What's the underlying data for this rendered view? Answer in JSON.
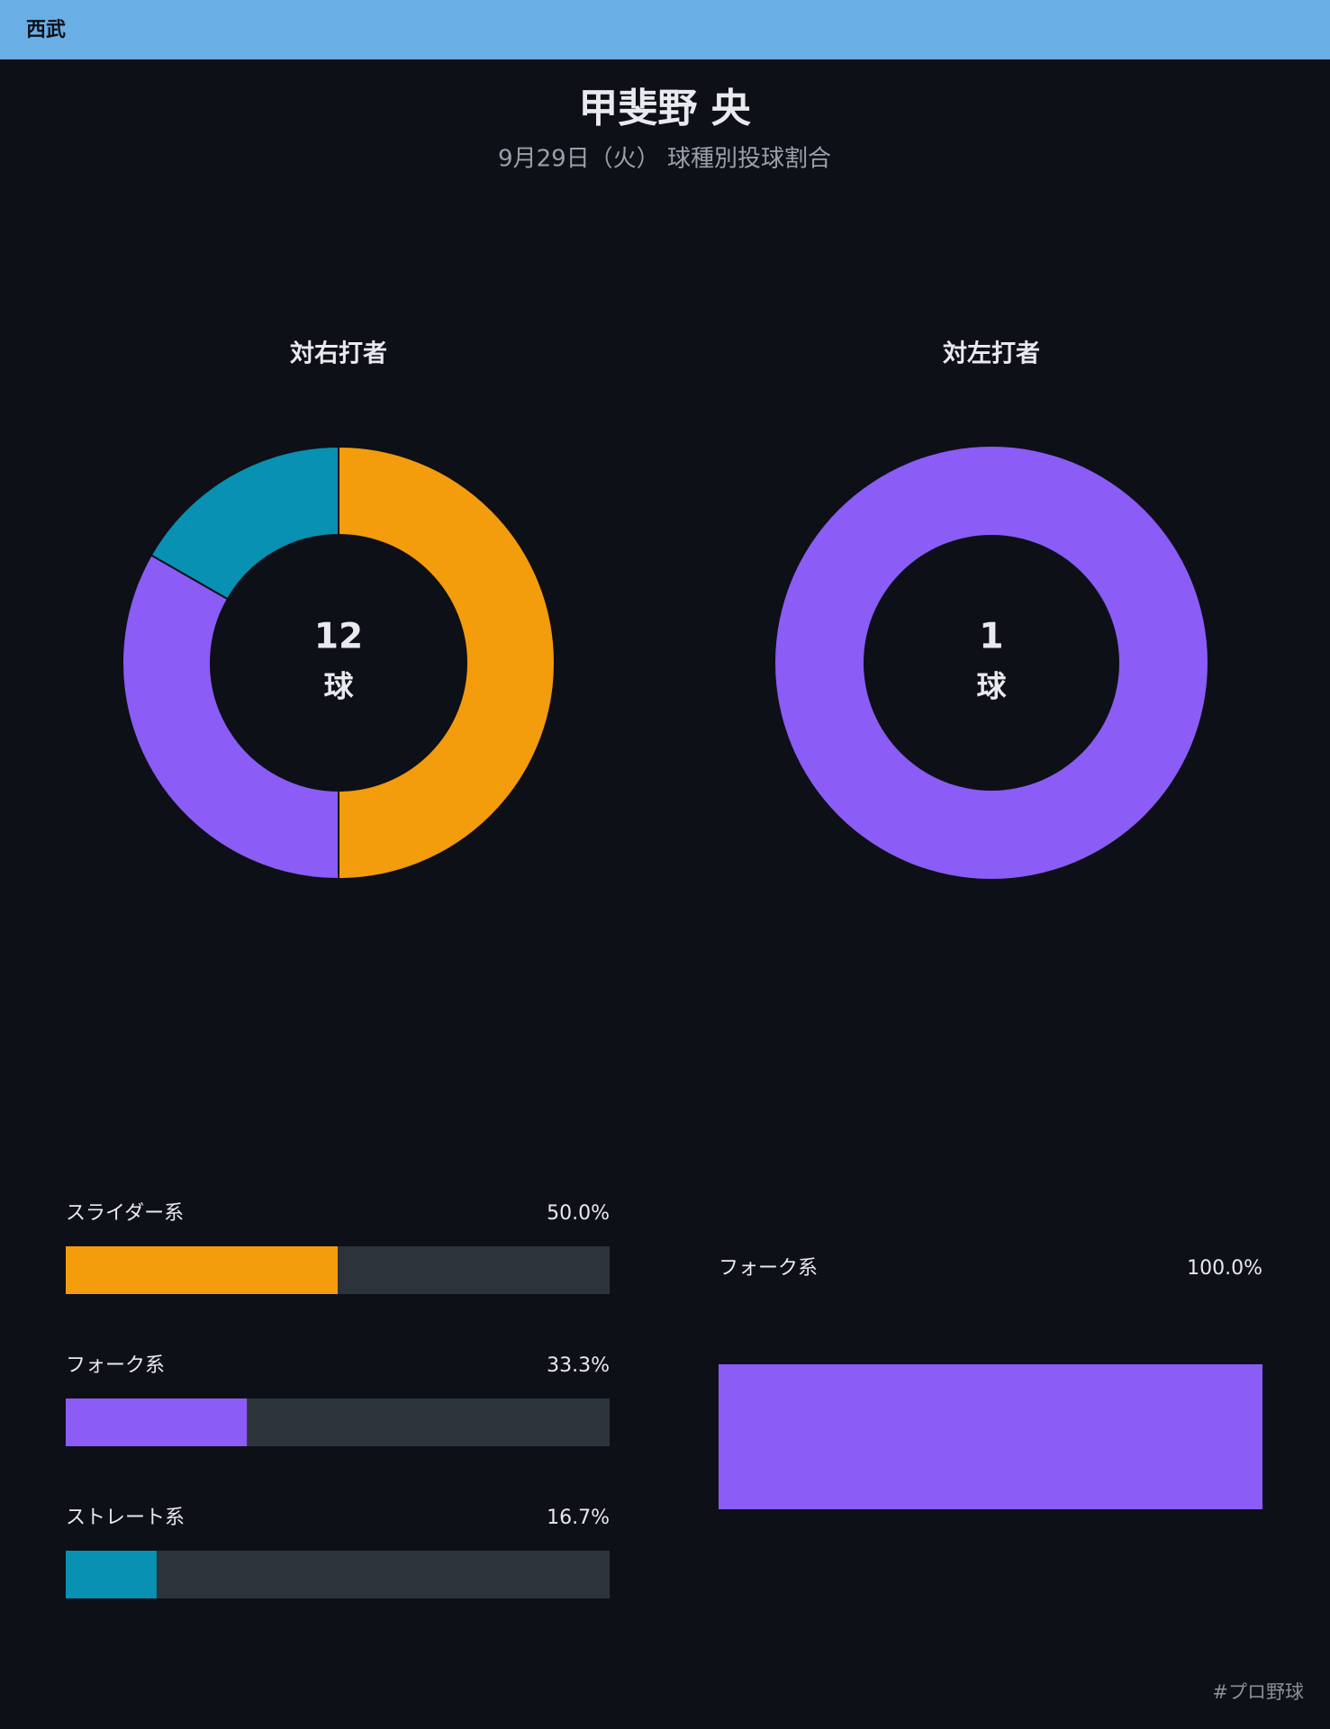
{
  "header": {
    "team": "西武"
  },
  "title": "甲斐野 央",
  "subtitle": "9月29日（火） 球種別投球割合",
  "footer": "#プロ野球",
  "chart_data": [
    {
      "type": "donut",
      "title": "対右打者",
      "total": 12,
      "unit": "球",
      "categories": [
        "スライダー系",
        "フォーク系",
        "ストレート系"
      ],
      "values": [
        50.0,
        33.3,
        16.7
      ],
      "value_labels": [
        "50.0%",
        "33.3%",
        "16.7%"
      ],
      "colors": [
        "#f39c0c",
        "#8b5cf6",
        "#0891b2"
      ]
    },
    {
      "type": "donut",
      "title": "対左打者",
      "total": 1,
      "unit": "球",
      "categories": [
        "フォーク系"
      ],
      "values": [
        100.0
      ],
      "value_labels": [
        "100.0%"
      ],
      "colors": [
        "#8b5cf6"
      ]
    }
  ]
}
